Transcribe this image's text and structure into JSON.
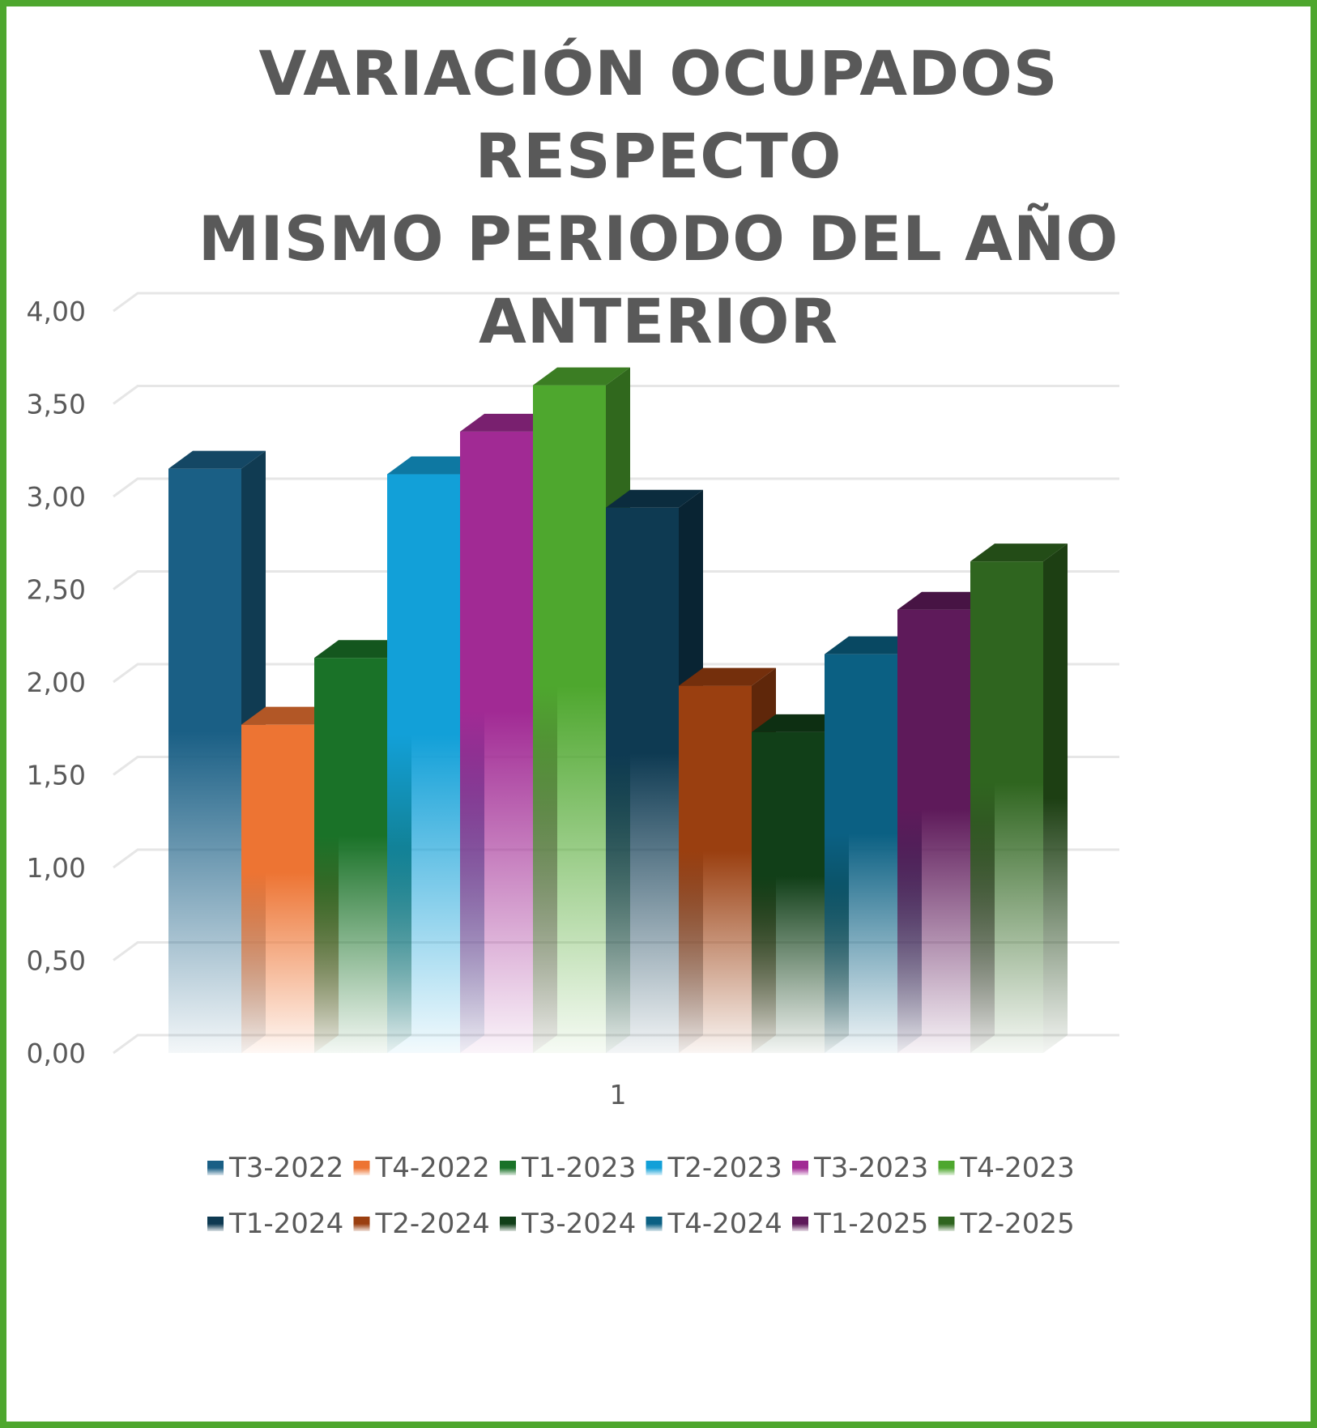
{
  "chart_data": {
    "type": "bar",
    "title_lines": [
      "VARIACIÓN OCUPADOS RESPECTO",
      "MISMO PERIODO DEL AÑO",
      "ANTERIOR"
    ],
    "categories": [
      "1"
    ],
    "ylim": [
      0,
      4
    ],
    "yticks": [
      "0,00",
      "0,50",
      "1,00",
      "1,50",
      "2,00",
      "2,50",
      "3,00",
      "3,50",
      "4,00"
    ],
    "grid": true,
    "legend_position": "bottom",
    "series": [
      {
        "name": "T3-2022",
        "values": [
          3.15
        ],
        "color": "#1a5f85"
      },
      {
        "name": "T4-2022",
        "values": [
          1.77
        ],
        "color": "#ed7433"
      },
      {
        "name": "T1-2023",
        "values": [
          2.13
        ],
        "color": "#1a7228"
      },
      {
        "name": "T2-2023",
        "values": [
          3.12
        ],
        "color": "#12a0d8"
      },
      {
        "name": "T3-2023",
        "values": [
          3.35
        ],
        "color": "#a12a94"
      },
      {
        "name": "T4-2023",
        "values": [
          3.6
        ],
        "color": "#4ea72e"
      },
      {
        "name": "T1-2024",
        "values": [
          2.94
        ],
        "color": "#0e3a52"
      },
      {
        "name": "T2-2024",
        "values": [
          1.98
        ],
        "color": "#9a3f10"
      },
      {
        "name": "T3-2024",
        "values": [
          1.73
        ],
        "color": "#113f18"
      },
      {
        "name": "T4-2024",
        "values": [
          2.15
        ],
        "color": "#0b6083"
      },
      {
        "name": "T1-2025",
        "values": [
          2.39
        ],
        "color": "#5e1a5a"
      },
      {
        "name": "T2-2025",
        "values": [
          2.65
        ],
        "color": "#2f651f"
      }
    ]
  }
}
